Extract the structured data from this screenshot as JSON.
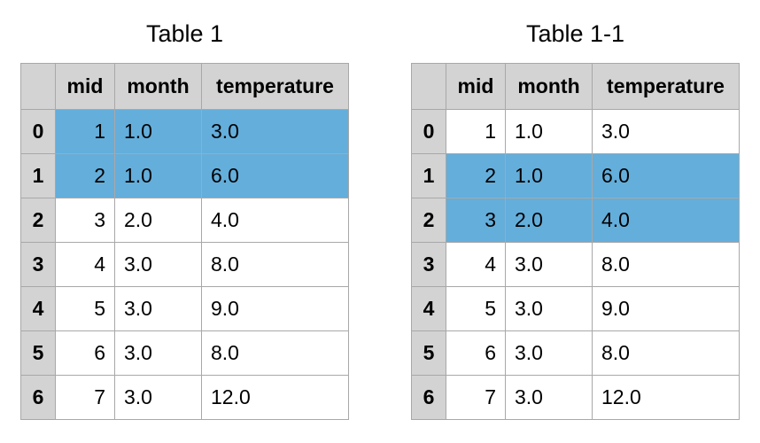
{
  "tables": [
    {
      "title": "Table 1",
      "headers": [
        "mid",
        "month",
        "temperature"
      ],
      "rows": [
        {
          "index": "0",
          "mid": "1",
          "month": "1.0",
          "temperature": "3.0",
          "highlighted": true
        },
        {
          "index": "1",
          "mid": "2",
          "month": "1.0",
          "temperature": "6.0",
          "highlighted": true
        },
        {
          "index": "2",
          "mid": "3",
          "month": "2.0",
          "temperature": "4.0",
          "highlighted": false
        },
        {
          "index": "3",
          "mid": "4",
          "month": "3.0",
          "temperature": "8.0",
          "highlighted": false
        },
        {
          "index": "4",
          "mid": "5",
          "month": "3.0",
          "temperature": "9.0",
          "highlighted": false
        },
        {
          "index": "5",
          "mid": "6",
          "month": "3.0",
          "temperature": "8.0",
          "highlighted": false
        },
        {
          "index": "6",
          "mid": "7",
          "month": "3.0",
          "temperature": "12.0",
          "highlighted": false
        }
      ]
    },
    {
      "title": "Table 1-1",
      "headers": [
        "mid",
        "month",
        "temperature"
      ],
      "rows": [
        {
          "index": "0",
          "mid": "1",
          "month": "1.0",
          "temperature": "3.0",
          "highlighted": false
        },
        {
          "index": "1",
          "mid": "2",
          "month": "1.0",
          "temperature": "6.0",
          "highlighted": true
        },
        {
          "index": "2",
          "mid": "3",
          "month": "2.0",
          "temperature": "4.0",
          "highlighted": true
        },
        {
          "index": "3",
          "mid": "4",
          "month": "3.0",
          "temperature": "8.0",
          "highlighted": false
        },
        {
          "index": "4",
          "mid": "5",
          "month": "3.0",
          "temperature": "9.0",
          "highlighted": false
        },
        {
          "index": "5",
          "mid": "6",
          "month": "3.0",
          "temperature": "8.0",
          "highlighted": false
        },
        {
          "index": "6",
          "mid": "7",
          "month": "3.0",
          "temperature": "12.0",
          "highlighted": false
        }
      ]
    }
  ],
  "colors": {
    "highlight": "#64aedb",
    "header_background": "#d3d3d3",
    "border": "#a8a8a8"
  }
}
